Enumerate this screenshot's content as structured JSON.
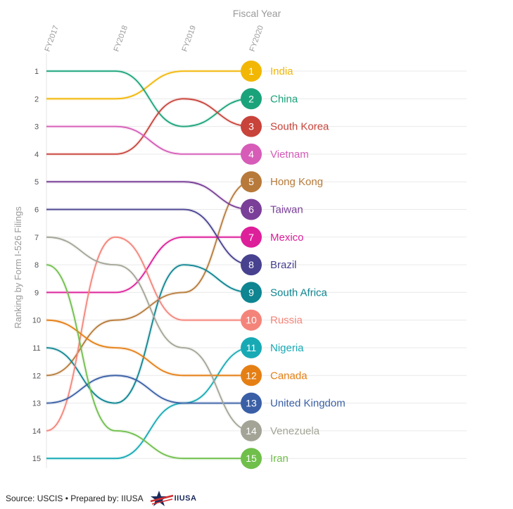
{
  "chart_data": {
    "type": "line",
    "title": "Fiscal Year",
    "ylabel": "Ranking by Form I-526 Filings",
    "x": [
      "FY2017",
      "FY2018",
      "FY2019",
      "FY2020"
    ],
    "y_ticks": [
      1,
      2,
      3,
      4,
      5,
      6,
      7,
      8,
      9,
      10,
      11,
      12,
      13,
      14,
      15
    ],
    "ylim": [
      1,
      15
    ],
    "y_reversed": true,
    "series": [
      {
        "name": "India",
        "rank": "1",
        "color": "#f2b705",
        "values": [
          2,
          2,
          1,
          1
        ]
      },
      {
        "name": "China",
        "rank": "2",
        "color": "#1aa37a",
        "values": [
          1,
          1,
          3,
          2
        ]
      },
      {
        "name": "South Korea",
        "rank": "3",
        "color": "#c8433a",
        "values": [
          4,
          4,
          2,
          3
        ]
      },
      {
        "name": "Vietnam",
        "rank": "4",
        "color": "#d65cb8",
        "values": [
          3,
          3,
          4,
          4
        ]
      },
      {
        "name": "Hong Kong",
        "rank": "5",
        "color": "#b77a3a",
        "values": [
          12,
          10,
          9,
          5
        ]
      },
      {
        "name": "Taiwan",
        "rank": "6",
        "color": "#7a3f98",
        "values": [
          5,
          5,
          5,
          6
        ]
      },
      {
        "name": "Mexico",
        "rank": "7",
        "color": "#dd1f9a",
        "values": [
          9,
          9,
          7,
          7
        ]
      },
      {
        "name": "Brazil",
        "rank": "8",
        "color": "#47418f",
        "values": [
          6,
          6,
          6,
          8
        ]
      },
      {
        "name": "South Africa",
        "rank": "9",
        "color": "#0e8591",
        "values": [
          11,
          13,
          8,
          9
        ]
      },
      {
        "name": "Russia",
        "rank": "10",
        "color": "#f4847a",
        "values": [
          14,
          7,
          10,
          10
        ]
      },
      {
        "name": "Nigeria",
        "rank": "11",
        "color": "#17aab5",
        "values": [
          15,
          15,
          13,
          11
        ]
      },
      {
        "name": "Canada",
        "rank": "12",
        "color": "#e57f14",
        "values": [
          10,
          11,
          12,
          12
        ]
      },
      {
        "name": "United Kingdom",
        "rank": "13",
        "color": "#3a5fa6",
        "values": [
          13,
          12,
          13,
          13
        ]
      },
      {
        "name": "Venezuela",
        "rank": "14",
        "color": "#a3a496",
        "values": [
          7,
          8,
          11,
          14
        ]
      },
      {
        "name": "Iran",
        "rank": "15",
        "color": "#6fbf4a",
        "values": [
          8,
          14,
          15,
          15
        ]
      }
    ]
  },
  "footer": {
    "source": "Source: USCIS • Prepared by: IIUSA",
    "logo_text": "IIUSA"
  }
}
